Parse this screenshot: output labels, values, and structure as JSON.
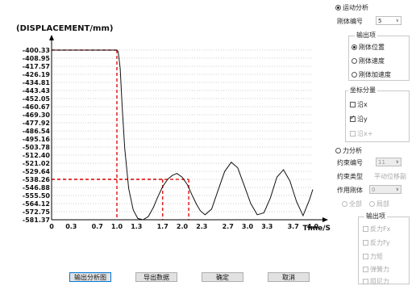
{
  "chart_data": {
    "type": "line",
    "title": "(DISPLACEMENT/mm)",
    "xlabel": "Time/S",
    "ylabel": "",
    "xlim": [
      0,
      4.0
    ],
    "ylim": [
      -581.37,
      -400.33
    ],
    "xticks": [
      0,
      0.3,
      0.7,
      1.0,
      1.3,
      1.7,
      2.0,
      2.3,
      2.7,
      3.0,
      3.3,
      3.7,
      4.0
    ],
    "xtick_labels": [
      "0",
      "0.3",
      "0.7",
      "1.0",
      "1.3",
      "1.7",
      "2.0",
      "2.3",
      "2.7",
      "3.0",
      "3.3",
      "3.7",
      "4.0"
    ],
    "yticks": [
      "-400.33",
      "-408.95",
      "-417.57",
      "-426.19",
      "-434.81",
      "-443.43",
      "-452.05",
      "-460.67",
      "-469.30",
      "-477.92",
      "-486.54",
      "-495.16",
      "-503.78",
      "-512.40",
      "-521.02",
      "-529.64",
      "-538.26",
      "-546.88",
      "-555.50",
      "-564.12",
      "-572.75",
      "-581.37"
    ],
    "grid": true,
    "series": [
      {
        "color": "#111111",
        "x": [
          0,
          0.5,
          1.0,
          1.02,
          1.05,
          1.08,
          1.12,
          1.18,
          1.25,
          1.32,
          1.4,
          1.48,
          1.56,
          1.62,
          1.7,
          1.78,
          1.85,
          1.92,
          2.0,
          2.08,
          2.15,
          2.22,
          2.28,
          2.35,
          2.45,
          2.55,
          2.65,
          2.75,
          2.85,
          2.95,
          3.05,
          3.15,
          3.25,
          3.35,
          3.45,
          3.55,
          3.65,
          3.75,
          3.85,
          3.95,
          4.0
        ],
        "y": [
          -400.33,
          -400.33,
          -400.33,
          -402,
          -420,
          -460,
          -505,
          -548,
          -571,
          -580,
          -581.37,
          -578,
          -568,
          -558,
          -546,
          -538,
          -534,
          -532,
          -536,
          -544,
          -555,
          -565,
          -572,
          -576,
          -570,
          -550,
          -530,
          -520,
          -526,
          -545,
          -564,
          -576,
          -574,
          -558,
          -536,
          -528,
          -540,
          -562,
          -577,
          -560,
          -549
        ]
      }
    ],
    "annotations": {
      "guides": [
        {
          "x": 1.0,
          "y": -400.33
        },
        {
          "x": 1.7,
          "y": -538.26
        },
        {
          "x": 2.1,
          "y": -538.26
        }
      ],
      "guide_color": "#e02020"
    }
  },
  "panel": {
    "motion_radio": "运动分析",
    "body_label": "刚体编号",
    "body_value": "5",
    "output_group": "输出项",
    "opt_position": "刚体位置",
    "opt_velocity": "刚体速度",
    "opt_accel": "刚体加速度",
    "component_group": "坐标分量",
    "comp_x": "沿x",
    "comp_y": "沿y",
    "comp_xy": "沿x+",
    "force_radio": "力分析",
    "constraint_label": "约束编号",
    "constraint_value": "11",
    "ctype_label": "约束类型",
    "ctype_value": "平动位移副",
    "act_label": "作用刚体",
    "act_value": "0",
    "all_label": "全部",
    "local_label": "局部",
    "out2_group": "输出项",
    "f_fx": "反力Fx",
    "f_fy": "反力Fy",
    "f_moment": "力矩",
    "f_spring": "弹簧力",
    "f_last": "阻尼力"
  },
  "buttons": {
    "export_chart": "输出分析图",
    "export_data": "导出数据",
    "ok": "确定",
    "cancel": "取消"
  }
}
